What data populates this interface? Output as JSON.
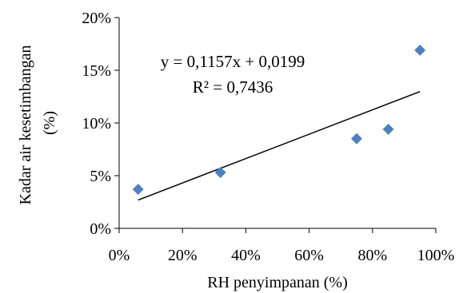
{
  "chart_data": {
    "type": "scatter",
    "xlabel": "RH penyimpanan (%)",
    "ylabel_lines": [
      "Kadar air kesetimbangan",
      "(%)"
    ],
    "x_ticks": [
      "0%",
      "20%",
      "40%",
      "60%",
      "80%",
      "100%"
    ],
    "y_ticks": [
      "0%",
      "5%",
      "10%",
      "15%",
      "20%"
    ],
    "xlim": [
      0,
      1
    ],
    "ylim": [
      0,
      0.2
    ],
    "grid": false,
    "legend": "none",
    "points": [
      {
        "x": 0.06,
        "y": 0.037
      },
      {
        "x": 0.32,
        "y": 0.053
      },
      {
        "x": 0.75,
        "y": 0.085
      },
      {
        "x": 0.85,
        "y": 0.094
      },
      {
        "x": 0.95,
        "y": 0.169
      }
    ],
    "trendline": {
      "slope": 0.1157,
      "intercept": 0.0199,
      "x_range": [
        0.06,
        0.95
      ],
      "equation_label": "y = 0,1157x + 0,0199",
      "r2_label": "R² = 0,7436"
    },
    "marker_color": "#4f81bd",
    "line_color": "#000000"
  }
}
